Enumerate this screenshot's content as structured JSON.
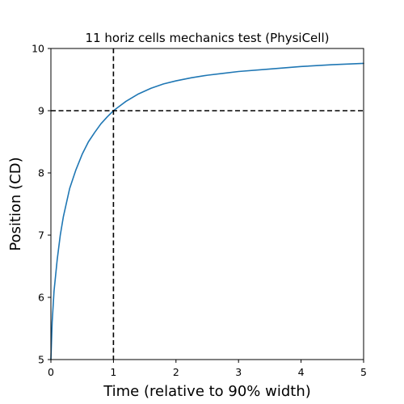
{
  "chart_data": {
    "type": "line",
    "title": "11 horiz cells mechanics test (PhysiCell)",
    "xlabel": "Time (relative to 90% width)",
    "ylabel": "Position (CD)",
    "xlim": [
      0,
      5
    ],
    "ylim": [
      5,
      10
    ],
    "xticks": [
      "0",
      "1",
      "2",
      "3",
      "4",
      "5"
    ],
    "yticks": [
      "5",
      "6",
      "7",
      "8",
      "9",
      "10"
    ],
    "grid": false,
    "legend": "none",
    "series": [
      {
        "color": "#1f77b4",
        "x": [
          0,
          0.02,
          0.05,
          0.1,
          0.15,
          0.2,
          0.3,
          0.4,
          0.5,
          0.6,
          0.7,
          0.8,
          0.9,
          1.0,
          1.2,
          1.4,
          1.6,
          1.8,
          2.0,
          2.25,
          2.5,
          2.75,
          3.0,
          3.5,
          4.0,
          4.5,
          5.0
        ],
        "y": [
          5.0,
          5.6,
          6.1,
          6.6,
          7.0,
          7.3,
          7.75,
          8.05,
          8.3,
          8.5,
          8.65,
          8.79,
          8.9,
          9.0,
          9.15,
          9.27,
          9.36,
          9.43,
          9.48,
          9.53,
          9.57,
          9.6,
          9.63,
          9.67,
          9.71,
          9.74,
          9.76
        ]
      }
    ],
    "reference_lines": [
      {
        "orientation": "vertical",
        "value": 1,
        "style": "dashed",
        "color": "#000000"
      },
      {
        "orientation": "horizontal",
        "value": 9,
        "style": "dashed",
        "color": "#000000"
      }
    ]
  }
}
